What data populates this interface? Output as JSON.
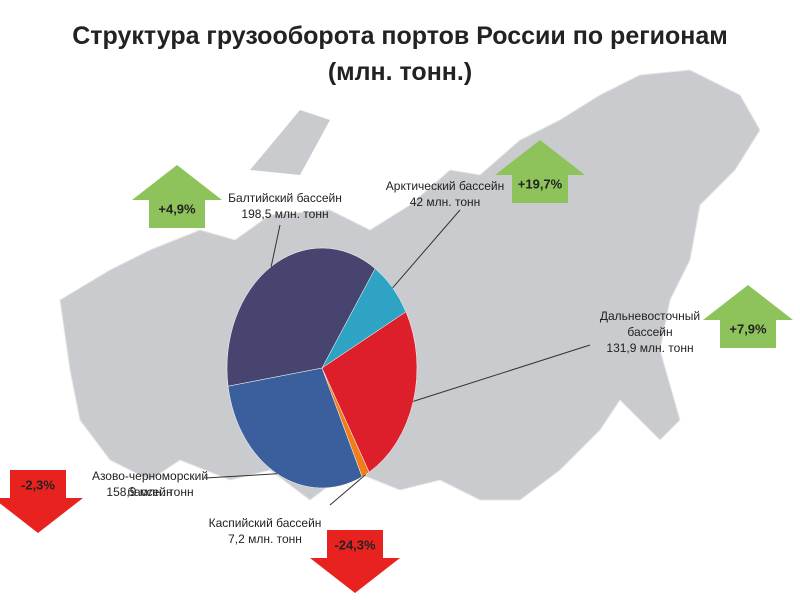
{
  "chart_data": {
    "type": "pie",
    "title": "Структура грузооборота портов России по регионам",
    "subtitle": "(млн. тонн.)",
    "categories": [
      "Арктический бассейн",
      "Дальневосточный бассейн",
      "Каспийский бассейн",
      "Азово-черноморский бассейн",
      "Балтийский бассейн"
    ],
    "values": [
      42,
      131.9,
      7.2,
      158.9,
      198.5
    ],
    "value_labels": [
      "42 млн. тонн",
      "131,9 млн. тонн",
      "7,2 млн. тонн",
      "158,9 млн. тонн",
      "198,5 млн. тонн"
    ],
    "colors": [
      "#2fa3c4",
      "#dc1f2a",
      "#f07d1c",
      "#3a5f9c",
      "#47456f"
    ],
    "changes": [
      "+19,7%",
      "+7,9%",
      "-24,3%",
      "-2,3%",
      "+4,9%"
    ]
  }
}
